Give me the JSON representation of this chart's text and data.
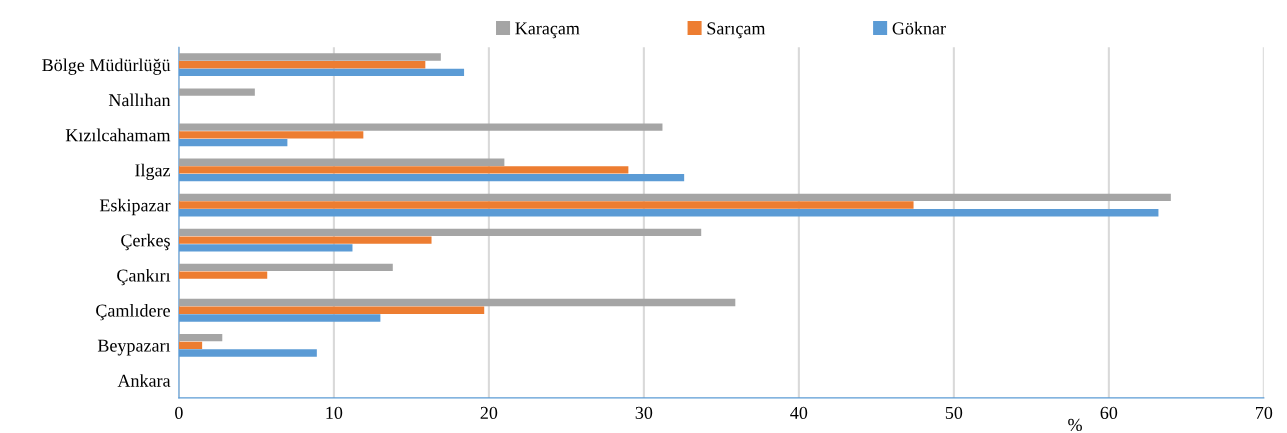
{
  "chart_data": {
    "type": "bar",
    "orientation": "horizontal",
    "xlabel": "%",
    "categories": [
      "Bölge Müdürlüğü",
      "Nallıhan",
      "Kızılcahamam",
      "Ilgaz",
      "Eskipazar",
      "Çerkeş",
      "Çankırı",
      "Çamlıdere",
      "Beypazarı",
      "Ankara"
    ],
    "series": [
      {
        "name": "Karaçam",
        "color": "#a5a5a5",
        "values": [
          16.9,
          4.9,
          31.2,
          21.0,
          64.0,
          33.7,
          13.8,
          35.9,
          2.8,
          null
        ]
      },
      {
        "name": "Sarıçam",
        "color": "#ed7d31",
        "values": [
          15.9,
          null,
          11.9,
          29.0,
          47.4,
          16.3,
          5.7,
          19.7,
          1.5,
          null
        ]
      },
      {
        "name": "Göknar",
        "color": "#5b9bd5",
        "values": [
          18.4,
          null,
          7.0,
          32.6,
          63.2,
          11.2,
          null,
          13.0,
          8.9,
          null
        ]
      }
    ],
    "xlim": [
      0,
      70
    ],
    "xticks": [
      0,
      10,
      20,
      30,
      40,
      50,
      60,
      70
    ],
    "grid": "x",
    "legend": "top"
  }
}
